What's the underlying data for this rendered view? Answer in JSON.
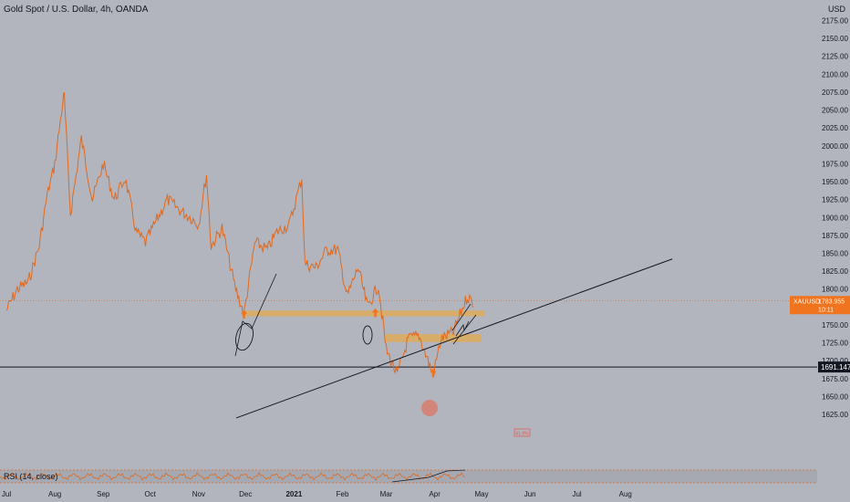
{
  "header": {
    "title": "Gold Spot / U.S. Dollar, 4h, OANDA",
    "currency": "USD"
  },
  "rsi": {
    "label": "RSI (14, close)"
  },
  "price_tags": {
    "symbol": "XAUUSD",
    "current": "1783.955",
    "countdown": "10:11",
    "line_level": "1691.147"
  },
  "annotation_box": "61.8%",
  "colors": {
    "background": "#b2b5be",
    "candle": "#e0691e",
    "zone": "#f5a623",
    "current_tag": "#f0731e",
    "line_tag": "#131722",
    "rsi_band": "#a6a9b2"
  },
  "chart_data": {
    "type": "line",
    "title": "Gold Spot / U.S. Dollar, 4h, OANDA",
    "xlabel": "",
    "ylabel": "",
    "x_ticks": [
      "Jul",
      "Aug",
      "Sep",
      "Oct",
      "Nov",
      "Dec",
      "2021",
      "Feb",
      "Mar",
      "Apr",
      "May",
      "Jun",
      "Jul",
      "Aug"
    ],
    "y_ticks": [
      1625,
      1650,
      1675,
      1700,
      1725,
      1750,
      1775,
      1800,
      1825,
      1850,
      1875,
      1900,
      1925,
      1950,
      1975,
      2000,
      2025,
      2050,
      2075,
      2100,
      2125,
      2150,
      2175
    ],
    "ylim": [
      1605,
      2195
    ],
    "grid": false,
    "series": [
      {
        "values": [
          [
            "2020-07-01",
            1770
          ],
          [
            "2020-07-08",
            1800
          ],
          [
            "2020-07-15",
            1810
          ],
          [
            "2020-07-22",
            1860
          ],
          [
            "2020-07-27",
            1930
          ],
          [
            "2020-08-01",
            1975
          ],
          [
            "2020-08-06",
            2060
          ],
          [
            "2020-08-07",
            2070
          ],
          [
            "2020-08-11",
            1905
          ],
          [
            "2020-08-14",
            1950
          ],
          [
            "2020-08-18",
            2010
          ],
          [
            "2020-08-25",
            1925
          ],
          [
            "2020-09-01",
            1975
          ],
          [
            "2020-09-08",
            1925
          ],
          [
            "2020-09-15",
            1955
          ],
          [
            "2020-09-22",
            1880
          ],
          [
            "2020-09-28",
            1865
          ],
          [
            "2020-10-06",
            1900
          ],
          [
            "2020-10-12",
            1925
          ],
          [
            "2020-10-20",
            1910
          ],
          [
            "2020-10-27",
            1900
          ],
          [
            "2020-11-01",
            1890
          ],
          [
            "2020-11-06",
            1960
          ],
          [
            "2020-11-09",
            1860
          ],
          [
            "2020-11-16",
            1885
          ],
          [
            "2020-11-24",
            1805
          ],
          [
            "2020-11-30",
            1765
          ],
          [
            "2020-12-07",
            1865
          ],
          [
            "2020-12-15",
            1855
          ],
          [
            "2020-12-21",
            1880
          ],
          [
            "2020-12-29",
            1890
          ],
          [
            "2021-01-06",
            1955
          ],
          [
            "2021-01-08",
            1835
          ],
          [
            "2021-01-15",
            1830
          ],
          [
            "2021-01-22",
            1855
          ],
          [
            "2021-01-29",
            1855
          ],
          [
            "2021-02-04",
            1790
          ],
          [
            "2021-02-11",
            1830
          ],
          [
            "2021-02-17",
            1775
          ],
          [
            "2021-02-24",
            1805
          ],
          [
            "2021-03-01",
            1715
          ],
          [
            "2021-03-08",
            1680
          ],
          [
            "2021-03-15",
            1730
          ],
          [
            "2021-03-22",
            1735
          ],
          [
            "2021-03-31",
            1680
          ],
          [
            "2021-04-05",
            1730
          ],
          [
            "2021-04-13",
            1740
          ],
          [
            "2021-04-20",
            1780
          ],
          [
            "2021-04-22",
            1790
          ],
          [
            "2021-04-26",
            1780
          ]
        ]
      }
    ],
    "horizontal_lines": [
      {
        "value": 1783.955,
        "style": "dotted"
      },
      {
        "value": 1691.147,
        "style": "solid"
      }
    ],
    "trendline": {
      "from": [
        "2020-11-25",
        1620
      ],
      "to": [
        "2021-08-31",
        1842
      ]
    },
    "zones": [
      {
        "from": "2020-11-30",
        "to": "2021-05-03",
        "low": 1762,
        "high": 1770
      },
      {
        "from": "2021-02-28",
        "to": "2021-05-01",
        "low": 1726,
        "high": 1737
      }
    ],
    "arrows": [
      {
        "date": "2020-11-30",
        "value": 1760,
        "direction": "up"
      },
      {
        "date": "2021-02-22",
        "value": 1762,
        "direction": "up"
      },
      {
        "date": "2021-03-31",
        "value": 1678,
        "direction": "up"
      }
    ]
  }
}
